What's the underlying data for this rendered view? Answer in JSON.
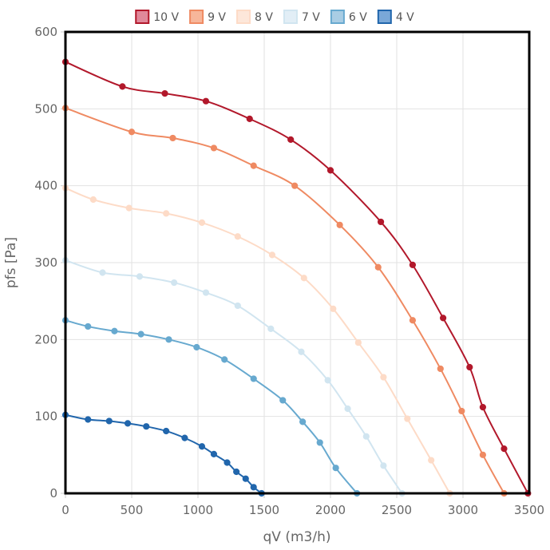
{
  "chart_data": {
    "type": "line",
    "title": "",
    "xlabel": "qV (m3/h)",
    "ylabel": "pfs [Pa]",
    "xlim": [
      0,
      3500
    ],
    "ylim": [
      0,
      600
    ],
    "x_ticks": [
      0,
      500,
      1000,
      1500,
      2000,
      2500,
      3000,
      3500
    ],
    "y_ticks": [
      0,
      100,
      200,
      300,
      400,
      500,
      600
    ],
    "grid": true,
    "legend_position": "top",
    "series": [
      {
        "name": "10 V",
        "color": "#b2182b",
        "fill": "#e0889a",
        "points": [
          [
            0,
            561
          ],
          [
            430,
            529
          ],
          [
            750,
            520
          ],
          [
            1060,
            510
          ],
          [
            1390,
            487
          ],
          [
            1700,
            460
          ],
          [
            2000,
            420
          ],
          [
            2380,
            353
          ],
          [
            2620,
            297
          ],
          [
            2850,
            228
          ],
          [
            3050,
            164
          ],
          [
            3150,
            112
          ],
          [
            3310,
            58
          ],
          [
            3490,
            0
          ]
        ]
      },
      {
        "name": "9 V",
        "color": "#ef8a62",
        "fill": "#f7b69a",
        "points": [
          [
            0,
            501
          ],
          [
            500,
            470
          ],
          [
            810,
            462
          ],
          [
            1120,
            449
          ],
          [
            1420,
            426
          ],
          [
            1730,
            400
          ],
          [
            2070,
            349
          ],
          [
            2360,
            294
          ],
          [
            2620,
            225
          ],
          [
            2830,
            162
          ],
          [
            2990,
            107
          ],
          [
            3150,
            50
          ],
          [
            3310,
            0
          ]
        ]
      },
      {
        "name": "8 V",
        "color": "#fddbc7",
        "fill": "#fde7da",
        "points": [
          [
            0,
            397
          ],
          [
            210,
            382
          ],
          [
            480,
            371
          ],
          [
            760,
            364
          ],
          [
            1030,
            352
          ],
          [
            1300,
            334
          ],
          [
            1560,
            310
          ],
          [
            1800,
            280
          ],
          [
            2020,
            240
          ],
          [
            2210,
            196
          ],
          [
            2400,
            151
          ],
          [
            2580,
            97
          ],
          [
            2760,
            43
          ],
          [
            2900,
            0
          ]
        ]
      },
      {
        "name": "7 V",
        "color": "#d1e5f0",
        "fill": "#e2eef6",
        "points": [
          [
            0,
            303
          ],
          [
            280,
            287
          ],
          [
            560,
            282
          ],
          [
            820,
            274
          ],
          [
            1060,
            261
          ],
          [
            1300,
            244
          ],
          [
            1550,
            214
          ],
          [
            1780,
            184
          ],
          [
            1980,
            147
          ],
          [
            2130,
            110
          ],
          [
            2270,
            74
          ],
          [
            2400,
            36
          ],
          [
            2540,
            0
          ]
        ]
      },
      {
        "name": "6 V",
        "color": "#67a9cf",
        "fill": "#a9cde4",
        "points": [
          [
            0,
            225
          ],
          [
            170,
            217
          ],
          [
            370,
            211
          ],
          [
            570,
            207
          ],
          [
            780,
            200
          ],
          [
            990,
            190
          ],
          [
            1200,
            174
          ],
          [
            1420,
            149
          ],
          [
            1640,
            121
          ],
          [
            1790,
            93
          ],
          [
            1920,
            66
          ],
          [
            2040,
            33
          ],
          [
            2200,
            0
          ]
        ]
      },
      {
        "name": "4 V",
        "color": "#2166ac",
        "fill": "#7aa8d8",
        "points": [
          [
            0,
            102
          ],
          [
            170,
            96
          ],
          [
            330,
            94
          ],
          [
            470,
            91
          ],
          [
            610,
            87
          ],
          [
            760,
            81
          ],
          [
            900,
            72
          ],
          [
            1030,
            61
          ],
          [
            1120,
            51
          ],
          [
            1220,
            40
          ],
          [
            1290,
            28
          ],
          [
            1360,
            19
          ],
          [
            1420,
            8
          ],
          [
            1480,
            0
          ]
        ]
      }
    ]
  }
}
